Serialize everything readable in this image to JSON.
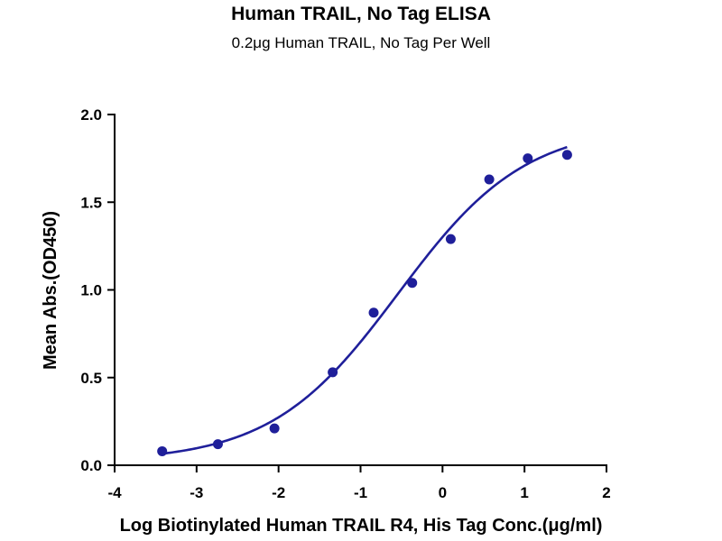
{
  "chart_data": {
    "type": "scatter",
    "title": "Human TRAIL, No Tag ELISA",
    "subtitle": "0.2μg Human TRAIL, No Tag Per Well",
    "xlabel": "Log Biotinylated Human TRAIL R4, His Tag Conc.(μg/ml)",
    "ylabel": "Mean Abs.(OD450)",
    "xlim": [
      -4,
      2
    ],
    "ylim": [
      0,
      2.0
    ],
    "x_ticks": [
      "-4",
      "-3",
      "-2",
      "-1",
      "0",
      "1",
      "2"
    ],
    "y_ticks": [
      "0.0",
      "0.5",
      "1.0",
      "1.5",
      "2.0"
    ],
    "grid": false,
    "color": "#1f1f9a",
    "series": [
      {
        "x": [
          -3.42,
          -2.74,
          -2.05,
          -1.34,
          -0.84,
          -0.37,
          0.1,
          0.57,
          1.04,
          1.52
        ],
        "y": [
          0.08,
          0.12,
          0.21,
          0.53,
          0.87,
          1.04,
          1.29,
          1.63,
          1.75,
          1.77
        ]
      }
    ]
  }
}
